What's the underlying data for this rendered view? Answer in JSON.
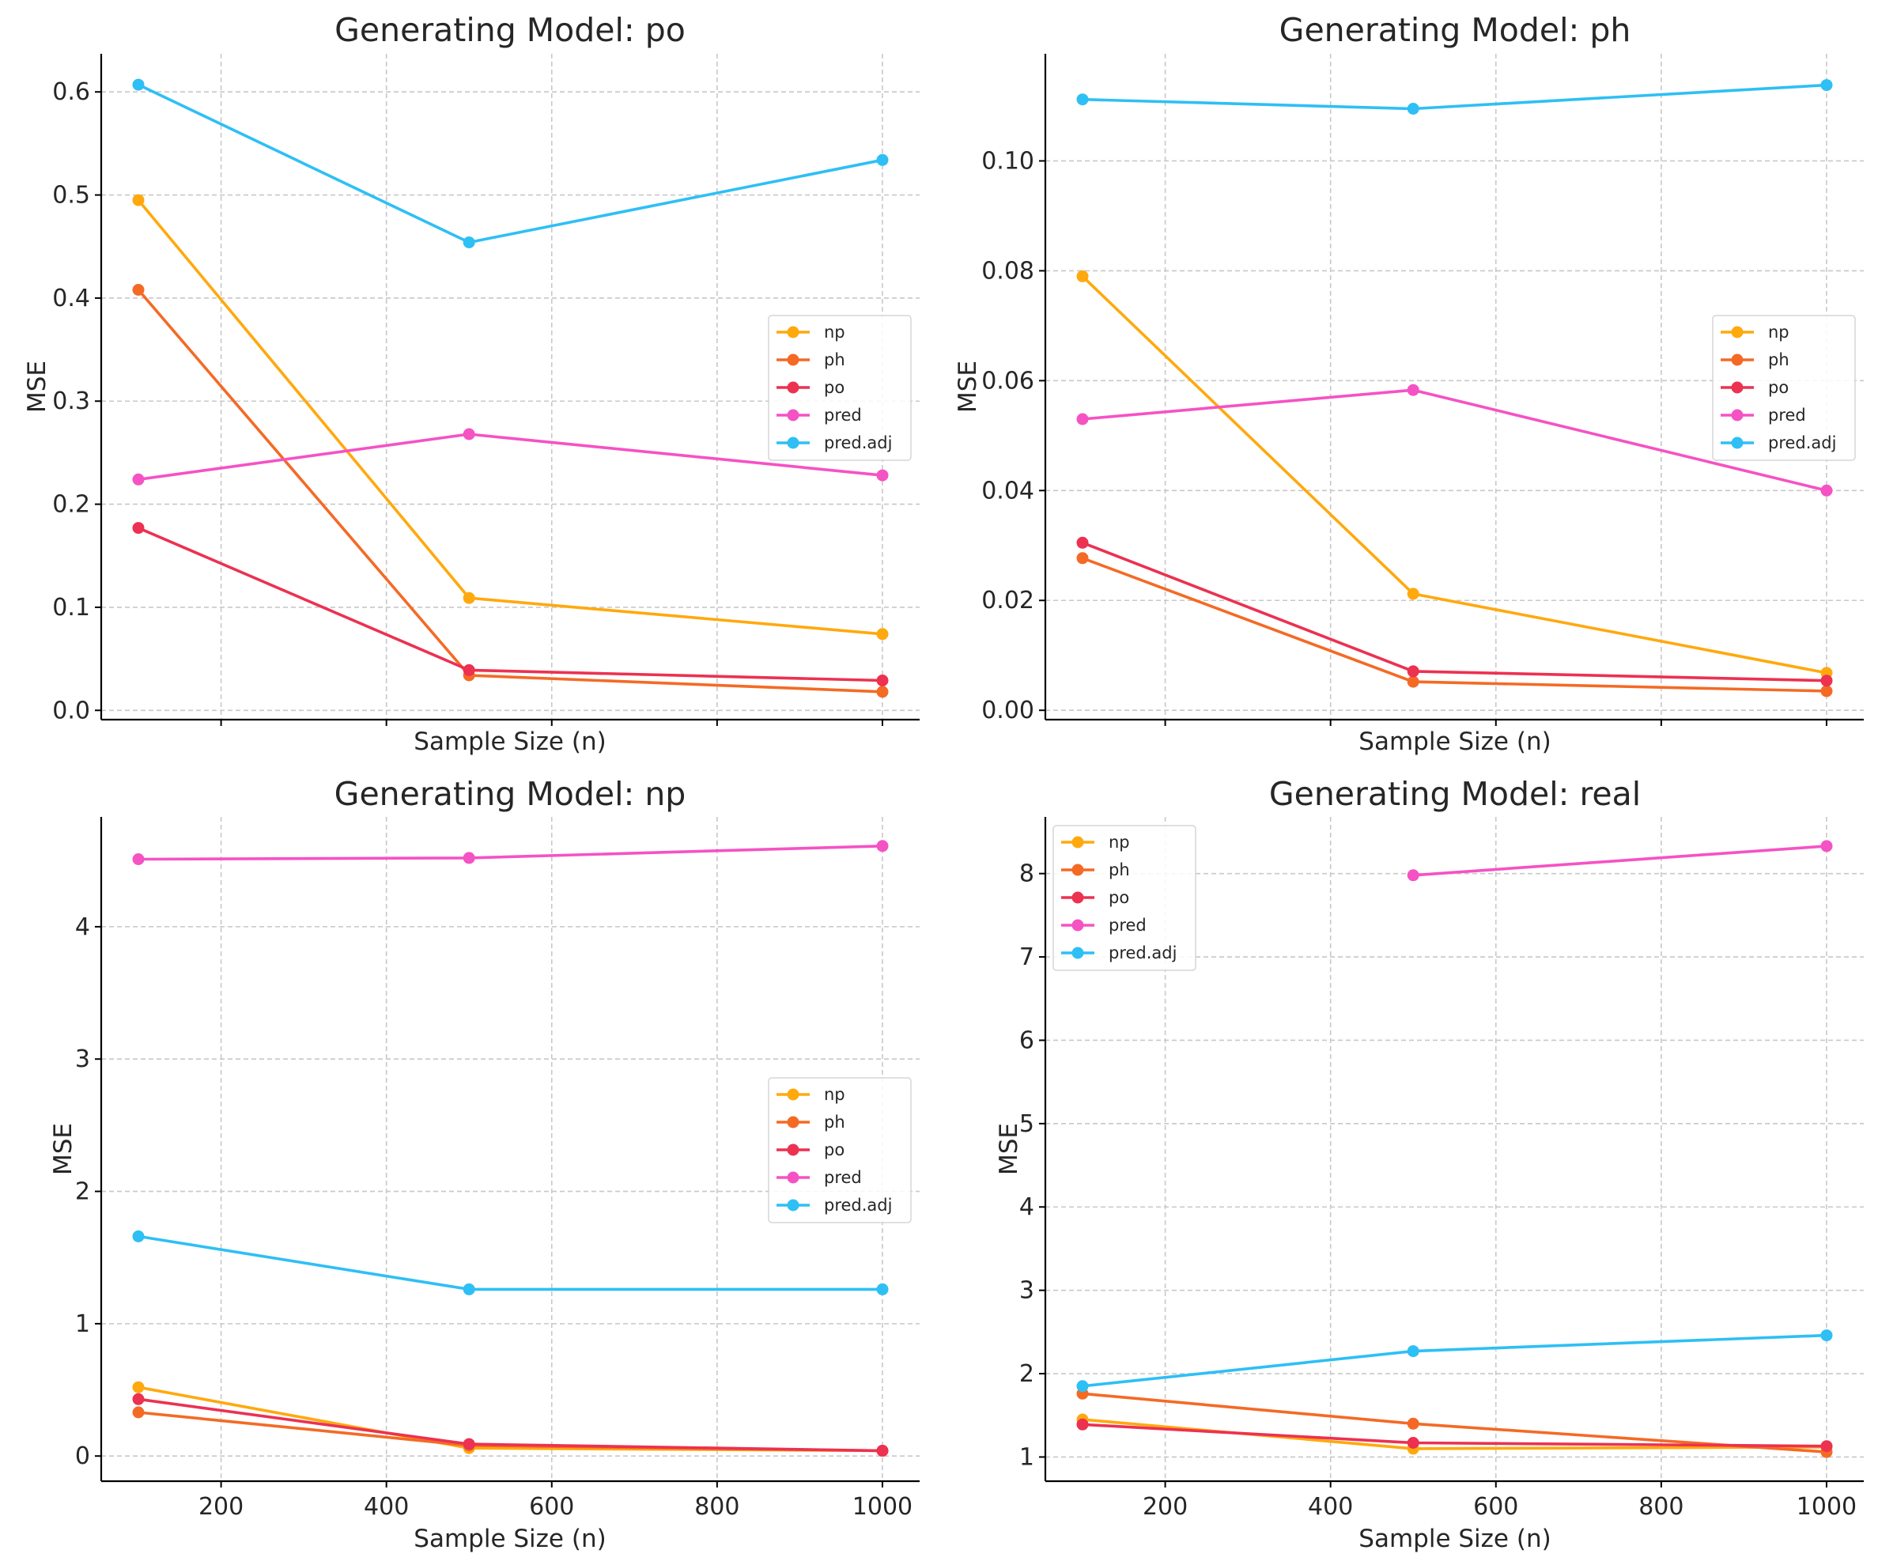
{
  "colors": {
    "np": "#FFA90E",
    "ph": "#F46A25",
    "po": "#EC3151",
    "pred": "#F552C4",
    "pred.adj": "#2EBFF5",
    "grid": "#c8c8c8",
    "axis": "#000000"
  },
  "chart_data": [
    {
      "type": "line",
      "title": "Generating Model: po",
      "xlabel": "Sample Size (n)",
      "ylabel": "MSE",
      "x": [
        100,
        500,
        1000
      ],
      "xlim": [
        55,
        1045
      ],
      "ylim": [
        -0.009,
        0.637
      ],
      "xticks": [
        200,
        400,
        600,
        800,
        1000
      ],
      "show_xticklabels": false,
      "yticks": [
        0.0,
        0.1,
        0.2,
        0.3,
        0.4,
        0.5,
        0.6
      ],
      "yticklabels": [
        "0.0",
        "0.1",
        "0.2",
        "0.3",
        "0.4",
        "0.5",
        "0.6"
      ],
      "grid": true,
      "legend": "center-right",
      "series": [
        {
          "name": "np",
          "values": [
            0.495,
            0.109,
            0.074
          ]
        },
        {
          "name": "ph",
          "values": [
            0.408,
            0.034,
            0.018
          ]
        },
        {
          "name": "po",
          "values": [
            0.177,
            0.039,
            0.029
          ]
        },
        {
          "name": "pred",
          "values": [
            0.224,
            0.268,
            0.228
          ]
        },
        {
          "name": "pred.adj",
          "values": [
            0.607,
            0.454,
            0.534
          ]
        }
      ]
    },
    {
      "type": "line",
      "title": "Generating Model: ph",
      "xlabel": "Sample Size (n)",
      "ylabel": "MSE",
      "x": [
        100,
        500,
        1000
      ],
      "xlim": [
        55,
        1045
      ],
      "ylim": [
        -0.0017,
        0.1195
      ],
      "xticks": [
        200,
        400,
        600,
        800,
        1000
      ],
      "show_xticklabels": false,
      "yticks": [
        0.0,
        0.02,
        0.04,
        0.06,
        0.08,
        0.1
      ],
      "yticklabels": [
        "0.00",
        "0.02",
        "0.04",
        "0.06",
        "0.08",
        "0.10"
      ],
      "grid": true,
      "legend": "center-right",
      "series": [
        {
          "name": "np",
          "values": [
            0.079,
            0.0212,
            0.0068
          ]
        },
        {
          "name": "ph",
          "values": [
            0.0277,
            0.0052,
            0.0035
          ]
        },
        {
          "name": "po",
          "values": [
            0.0305,
            0.0071,
            0.0054
          ]
        },
        {
          "name": "pred",
          "values": [
            0.053,
            0.0583,
            0.04
          ]
        },
        {
          "name": "pred.adj",
          "values": [
            0.1112,
            0.1095,
            0.1138
          ]
        }
      ]
    },
    {
      "type": "line",
      "title": "Generating Model: np",
      "xlabel": "Sample Size (n)",
      "ylabel": "MSE",
      "x": [
        100,
        500,
        1000
      ],
      "xlim": [
        55,
        1045
      ],
      "ylim": [
        -0.19,
        4.83
      ],
      "xticks": [
        200,
        400,
        600,
        800,
        1000
      ],
      "show_xticklabels": true,
      "yticks": [
        0,
        1,
        2,
        3,
        4
      ],
      "yticklabels": [
        "0",
        "1",
        "2",
        "3",
        "4"
      ],
      "grid": true,
      "legend": "center-right",
      "series": [
        {
          "name": "np",
          "values": [
            0.52,
            0.06,
            0.04
          ]
        },
        {
          "name": "ph",
          "values": [
            0.33,
            0.08,
            0.04
          ]
        },
        {
          "name": "po",
          "values": [
            0.43,
            0.09,
            0.04
          ]
        },
        {
          "name": "pred",
          "values": [
            4.51,
            4.52,
            4.61
          ]
        },
        {
          "name": "pred.adj",
          "values": [
            1.66,
            1.26,
            1.26
          ]
        }
      ]
    },
    {
      "type": "line",
      "title": "Generating Model: real",
      "xlabel": "Sample Size (n)",
      "ylabel": "MSE",
      "x": [
        100,
        500,
        1000
      ],
      "xlim": [
        55,
        1045
      ],
      "ylim": [
        0.71,
        8.68
      ],
      "xticks": [
        200,
        400,
        600,
        800,
        1000
      ],
      "show_xticklabels": true,
      "yticks": [
        1,
        2,
        3,
        4,
        5,
        6,
        7,
        8
      ],
      "yticklabels": [
        "1",
        "2",
        "3",
        "4",
        "5",
        "6",
        "7",
        "8"
      ],
      "grid": true,
      "legend": "top-left",
      "series": [
        {
          "name": "np",
          "values": [
            1.45,
            1.1,
            1.12
          ]
        },
        {
          "name": "ph",
          "values": [
            1.76,
            1.4,
            1.06
          ]
        },
        {
          "name": "po",
          "values": [
            1.39,
            1.17,
            1.13
          ]
        },
        {
          "name": "pred",
          "values": [
            null,
            7.98,
            8.33
          ]
        },
        {
          "name": "pred.adj",
          "values": [
            1.85,
            2.27,
            2.46
          ]
        }
      ]
    }
  ]
}
